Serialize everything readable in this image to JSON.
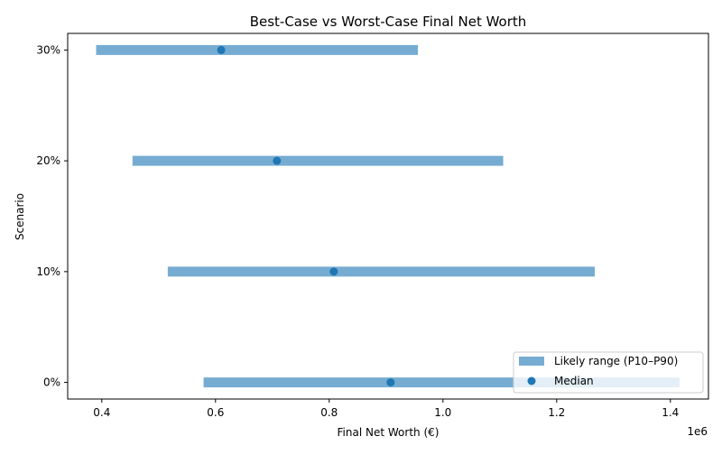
{
  "chart_data": {
    "type": "range-dot",
    "title": "Best-Case vs Worst-Case Final Net Worth",
    "xlabel": "Final Net Worth (€)",
    "ylabel": "Scenario",
    "x_offset_label": "1e6",
    "xlim": [
      0.34,
      1.467
    ],
    "xticks": [
      0.4,
      0.6,
      0.8,
      1.0,
      1.2,
      1.4
    ],
    "xtick_labels": [
      "0.4",
      "0.6",
      "0.8",
      "1.0",
      "1.2",
      "1.4"
    ],
    "categories": [
      "0%",
      "10%",
      "20%",
      "30%"
    ],
    "series": [
      {
        "name": "Likely range (P10–P90)",
        "kind": "range",
        "color": "#76acd2",
        "low": [
          0.579,
          0.516,
          0.454,
          0.39
        ],
        "high": [
          1.416,
          1.267,
          1.106,
          0.956
        ]
      },
      {
        "name": "Median",
        "kind": "point",
        "color": "#1f77b4",
        "values": [
          0.908,
          0.808,
          0.708,
          0.61
        ]
      }
    ],
    "grid": false,
    "legend_placement": "lower-right"
  }
}
